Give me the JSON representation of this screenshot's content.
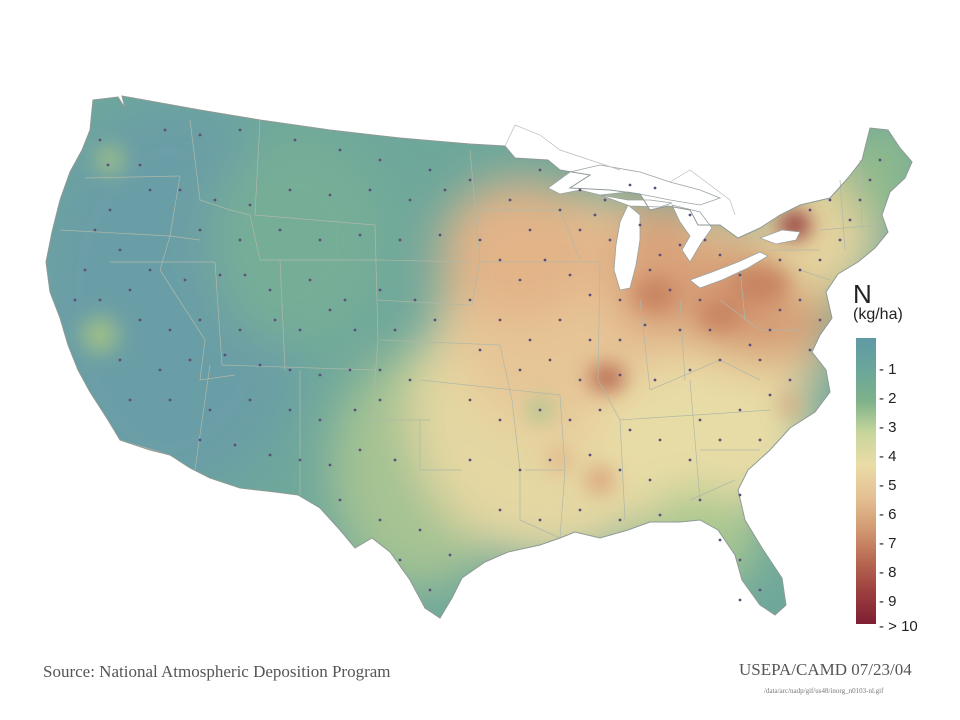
{
  "legend": {
    "title": "N",
    "unit": "(kg/ha)",
    "labels": [
      "1",
      "2",
      "3",
      "4",
      "5",
      "6",
      "7",
      "8",
      "9",
      "> 10"
    ],
    "colors": [
      "#5f9aa4",
      "#6aa69a",
      "#7fb28a",
      "#c8d69c",
      "#eadca6",
      "#e5c193",
      "#d39a72",
      "#b86a52",
      "#9c3f3f",
      "#7e1f33"
    ]
  },
  "source": "Source: National Atmospheric Deposition Program",
  "credit": "USEPA/CAMD 07/23/04",
  "file_path": "/data/arc/nadp/gif/us48/inorg_n0103-nl.gif",
  "colors": {
    "land_base": "#6ea79b",
    "water": "#ffffff",
    "state_border": "#b0b8a8",
    "site_dot": "#5b4f7a"
  }
}
